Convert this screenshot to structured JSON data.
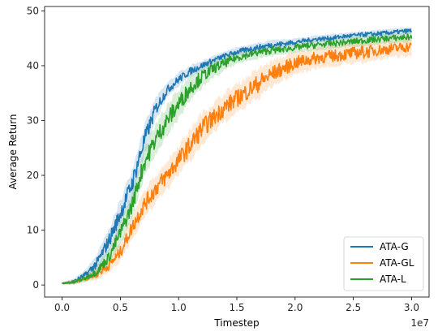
{
  "chart_data": {
    "type": "line",
    "title": "",
    "xlabel": "Timestep",
    "ylabel": "Average Return",
    "x_scale_note": "1e7",
    "xlim": [
      -0.15,
      3.15
    ],
    "ylim": [
      -2.2,
      50.8
    ],
    "xticks": [
      0.0,
      0.5,
      1.0,
      1.5,
      2.0,
      2.5,
      3.0
    ],
    "xtick_labels": [
      "0.0",
      "0.5",
      "1.0",
      "1.5",
      "2.0",
      "2.5",
      "3.0"
    ],
    "yticks": [
      0,
      10,
      20,
      30,
      40,
      50
    ],
    "ytick_labels": [
      "0",
      "10",
      "20",
      "30",
      "40",
      "50"
    ],
    "grid": false,
    "legend_position": "lower-right",
    "x": [
      0.0,
      0.1,
      0.2,
      0.3,
      0.4,
      0.5,
      0.6,
      0.7,
      0.8,
      0.9,
      1.0,
      1.1,
      1.2,
      1.3,
      1.4,
      1.5,
      1.6,
      1.7,
      1.8,
      1.9,
      2.0,
      2.1,
      2.2,
      2.3,
      2.4,
      2.5,
      2.6,
      2.7,
      2.8,
      2.9,
      3.0
    ],
    "series": [
      {
        "name": "ATA-G",
        "color": "#1f77b4",
        "values": [
          0.3,
          0.6,
          1.8,
          4.0,
          8.0,
          13.0,
          18.5,
          26.0,
          32.0,
          35.5,
          37.5,
          39.0,
          40.0,
          41.0,
          41.8,
          42.5,
          43.0,
          43.4,
          43.8,
          44.0,
          44.3,
          44.6,
          44.9,
          45.0,
          45.3,
          45.5,
          45.7,
          45.8,
          46.0,
          46.2,
          46.4
        ],
        "band": [
          0.1,
          0.4,
          0.7,
          1.2,
          1.6,
          1.8,
          2.0,
          2.0,
          1.5,
          1.0,
          0.9,
          0.8,
          0.7,
          0.6,
          0.6,
          0.6,
          0.6,
          0.6,
          0.6,
          0.6,
          0.5,
          0.5,
          0.5,
          0.5,
          0.5,
          0.5,
          0.5,
          0.5,
          0.5,
          0.5,
          0.5
        ]
      },
      {
        "name": "ATA-GL",
        "color": "#ff7f0e",
        "values": [
          0.3,
          0.5,
          1.2,
          2.0,
          3.5,
          6.0,
          10.5,
          14.5,
          17.5,
          20.0,
          22.8,
          25.5,
          28.5,
          30.5,
          32.5,
          34.0,
          35.5,
          37.0,
          38.5,
          39.5,
          40.5,
          41.0,
          41.5,
          41.7,
          42.0,
          42.3,
          42.5,
          42.8,
          43.0,
          43.3,
          43.5
        ],
        "band": [
          0.1,
          0.3,
          0.5,
          0.8,
          1.0,
          1.3,
          1.6,
          1.8,
          1.9,
          2.0,
          2.0,
          2.2,
          2.2,
          2.0,
          2.0,
          2.0,
          2.0,
          2.0,
          1.8,
          1.6,
          1.5,
          1.5,
          1.4,
          1.4,
          1.4,
          1.4,
          1.5,
          1.3,
          1.2,
          1.2,
          1.2
        ]
      },
      {
        "name": "ATA-L",
        "color": "#2ca02c",
        "values": [
          0.3,
          0.5,
          1.3,
          2.5,
          5.0,
          9.5,
          14.5,
          22.0,
          26.5,
          30.0,
          33.0,
          36.0,
          38.0,
          39.5,
          40.5,
          41.5,
          42.0,
          42.5,
          42.8,
          43.0,
          43.3,
          43.6,
          43.8,
          44.0,
          44.2,
          44.4,
          44.6,
          44.8,
          45.0,
          45.1,
          45.3
        ],
        "band": [
          0.1,
          0.3,
          0.5,
          0.9,
          1.2,
          1.6,
          1.8,
          2.0,
          2.0,
          2.0,
          2.0,
          1.8,
          1.5,
          1.2,
          1.0,
          0.9,
          0.8,
          0.8,
          0.8,
          0.7,
          0.7,
          0.7,
          0.7,
          0.7,
          0.7,
          0.7,
          0.7,
          0.7,
          0.7,
          0.7,
          0.7
        ]
      }
    ]
  }
}
